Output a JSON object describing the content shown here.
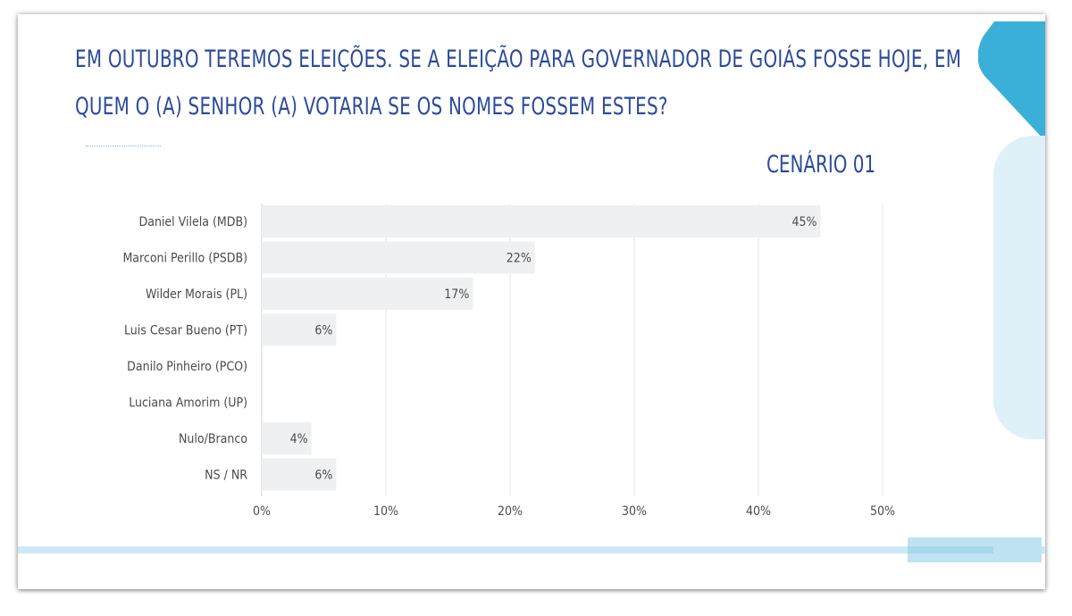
{
  "title_lines": [
    "EM OUTUBRO TEREMOS ELEIÇÕES. SE A ELEIÇÃO PARA GOVERNADOR DE GOIÁS FOSSE HOJE, EM",
    "QUEM O (A) SENHOR (A) VOTARIA SE OS NOMES FOSSEM ESTES?"
  ],
  "subtitle": "CENÁRIO 01",
  "colors": {
    "title": "#2b4a9e",
    "bar": "#eef0f1",
    "grid": "#e6e6e6",
    "text": "#4a4a4a",
    "accent": "#3ab0d8",
    "accent_light": "#dff0f8"
  },
  "chart_data": {
    "type": "bar",
    "orientation": "horizontal",
    "categories": [
      "Daniel Vilela (MDB)",
      "Marconi Perillo (PSDB)",
      "Wilder Morais (PL)",
      "Luis Cesar Bueno (PT)",
      "Danilo Pinheiro (PCO)",
      "Luciana Amorim (UP)",
      "Nulo/Branco",
      "NS / NR"
    ],
    "values": [
      45,
      22,
      17,
      6,
      0,
      0,
      4,
      6
    ],
    "data_labels": [
      "45%",
      "22%",
      "17%",
      "6%",
      "",
      "",
      "4%",
      "6%"
    ],
    "xlim": [
      0,
      50
    ],
    "xticks": [
      0,
      10,
      20,
      30,
      40,
      50
    ],
    "xtick_labels": [
      "0%",
      "10%",
      "20%",
      "30%",
      "40%",
      "50%"
    ],
    "grid": true,
    "legend": "none"
  }
}
